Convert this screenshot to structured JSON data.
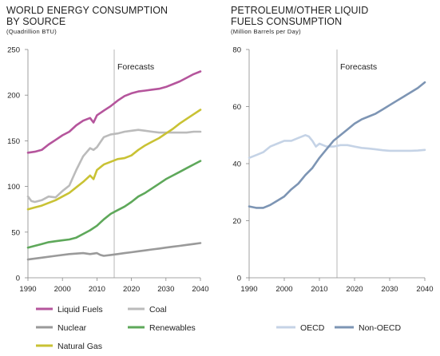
{
  "chart_data": [
    {
      "type": "line",
      "title": "WORLD ENERGY CONSUMPTION\nBY SOURCE",
      "subtitle": "(Quadrillion BTU)",
      "ylim": [
        0,
        250
      ],
      "xlim": [
        1990,
        2040
      ],
      "x_ticks": [
        1990,
        2000,
        2010,
        2020,
        2030,
        2040
      ],
      "y_ticks": [
        0,
        50,
        100,
        150,
        200,
        250
      ],
      "grid": false,
      "annotation": {
        "label": "Forecasts",
        "x": 2015
      },
      "legend_position": "bottom",
      "series": [
        {
          "name": "Liquid Fuels",
          "color": "#b5559c",
          "x": [
            1990,
            1992,
            1994,
            1996,
            1998,
            2000,
            2002,
            2004,
            2006,
            2008,
            2009,
            2010,
            2012,
            2014,
            2016,
            2018,
            2020,
            2022,
            2024,
            2026,
            2028,
            2030,
            2032,
            2034,
            2036,
            2038,
            2040
          ],
          "y": [
            137,
            138,
            140,
            146,
            151,
            156,
            160,
            167,
            172,
            175,
            170,
            178,
            183,
            188,
            194,
            199,
            202,
            204,
            205,
            206,
            207,
            209,
            212,
            215,
            219,
            223,
            226
          ]
        },
        {
          "name": "Coal",
          "color": "#bbbbbb",
          "x": [
            1990,
            1991,
            1992,
            1994,
            1996,
            1998,
            2000,
            2002,
            2004,
            2006,
            2008,
            2009,
            2010,
            2012,
            2014,
            2016,
            2018,
            2020,
            2022,
            2024,
            2026,
            2028,
            2030,
            2032,
            2034,
            2036,
            2038,
            2040
          ],
          "y": [
            89,
            84,
            83,
            85,
            89,
            88,
            95,
            101,
            118,
            133,
            142,
            140,
            143,
            154,
            157,
            158,
            160,
            161,
            162,
            161,
            160,
            159,
            159,
            159,
            159,
            159,
            160,
            160
          ]
        },
        {
          "name": "Nuclear",
          "color": "#9a9a9a",
          "x": [
            1990,
            1994,
            1998,
            2002,
            2006,
            2008,
            2010,
            2011,
            2012,
            2014,
            2016,
            2018,
            2020,
            2022,
            2024,
            2026,
            2028,
            2030,
            2032,
            2034,
            2036,
            2038,
            2040
          ],
          "y": [
            20,
            22,
            24,
            26,
            27,
            26,
            27,
            25,
            24,
            25,
            26,
            27,
            28,
            29,
            30,
            31,
            32,
            33,
            34,
            35,
            36,
            37,
            38
          ]
        },
        {
          "name": "Renewables",
          "color": "#5ea85a",
          "x": [
            1990,
            1992,
            1994,
            1996,
            1998,
            2000,
            2002,
            2004,
            2006,
            2008,
            2010,
            2012,
            2014,
            2016,
            2018,
            2020,
            2022,
            2024,
            2026,
            2028,
            2030,
            2032,
            2034,
            2036,
            2038,
            2040
          ],
          "y": [
            33,
            35,
            37,
            39,
            40,
            41,
            42,
            44,
            48,
            52,
            57,
            64,
            70,
            74,
            78,
            83,
            89,
            93,
            98,
            103,
            108,
            112,
            116,
            120,
            124,
            128
          ]
        },
        {
          "name": "Natural Gas",
          "color": "#c9c234",
          "x": [
            1990,
            1992,
            1994,
            1996,
            1998,
            2000,
            2002,
            2004,
            2006,
            2008,
            2009,
            2010,
            2012,
            2014,
            2016,
            2018,
            2020,
            2022,
            2024,
            2026,
            2028,
            2030,
            2032,
            2034,
            2036,
            2038,
            2040
          ],
          "y": [
            75,
            77,
            79,
            82,
            85,
            89,
            93,
            99,
            105,
            112,
            108,
            118,
            124,
            127,
            130,
            131,
            134,
            140,
            145,
            149,
            153,
            158,
            163,
            169,
            174,
            179,
            184
          ]
        }
      ]
    },
    {
      "type": "line",
      "title": "PETROLEUM/OTHER LIQUID\nFUELS CONSUMPTION",
      "subtitle": "(Million Barrels per Day)",
      "ylim": [
        0,
        80
      ],
      "xlim": [
        1990,
        2040
      ],
      "x_ticks": [
        1990,
        2000,
        2010,
        2020,
        2030,
        2040
      ],
      "y_ticks": [
        0,
        20,
        40,
        60,
        80
      ],
      "grid": false,
      "annotation": {
        "label": "Forecasts",
        "x": 2015
      },
      "legend_position": "bottom",
      "series": [
        {
          "name": "OECD",
          "color": "#c5d3e6",
          "x": [
            1990,
            1992,
            1994,
            1996,
            1998,
            2000,
            2002,
            2004,
            2006,
            2007,
            2008,
            2009,
            2010,
            2012,
            2014,
            2016,
            2018,
            2020,
            2022,
            2024,
            2026,
            2028,
            2030,
            2032,
            2034,
            2036,
            2038,
            2040
          ],
          "y": [
            42,
            43,
            44,
            46,
            47,
            48,
            48,
            49,
            50,
            49.5,
            48,
            46,
            47,
            46,
            46,
            46.5,
            46.5,
            46,
            45.5,
            45.3,
            45,
            44.7,
            44.5,
            44.5,
            44.5,
            44.5,
            44.6,
            44.8
          ]
        },
        {
          "name": "Non-OECD",
          "color": "#7d95b4",
          "x": [
            1990,
            1992,
            1994,
            1996,
            1998,
            2000,
            2002,
            2004,
            2006,
            2008,
            2010,
            2012,
            2014,
            2016,
            2018,
            2020,
            2022,
            2024,
            2026,
            2028,
            2030,
            2032,
            2034,
            2036,
            2038,
            2040
          ],
          "y": [
            25,
            24.5,
            24.5,
            25.5,
            27,
            28.5,
            31,
            33,
            36,
            38.5,
            42,
            45,
            48,
            50,
            52,
            54,
            55.5,
            56.5,
            57.5,
            59,
            60.5,
            62,
            63.5,
            65,
            66.5,
            68.5
          ]
        }
      ]
    }
  ]
}
